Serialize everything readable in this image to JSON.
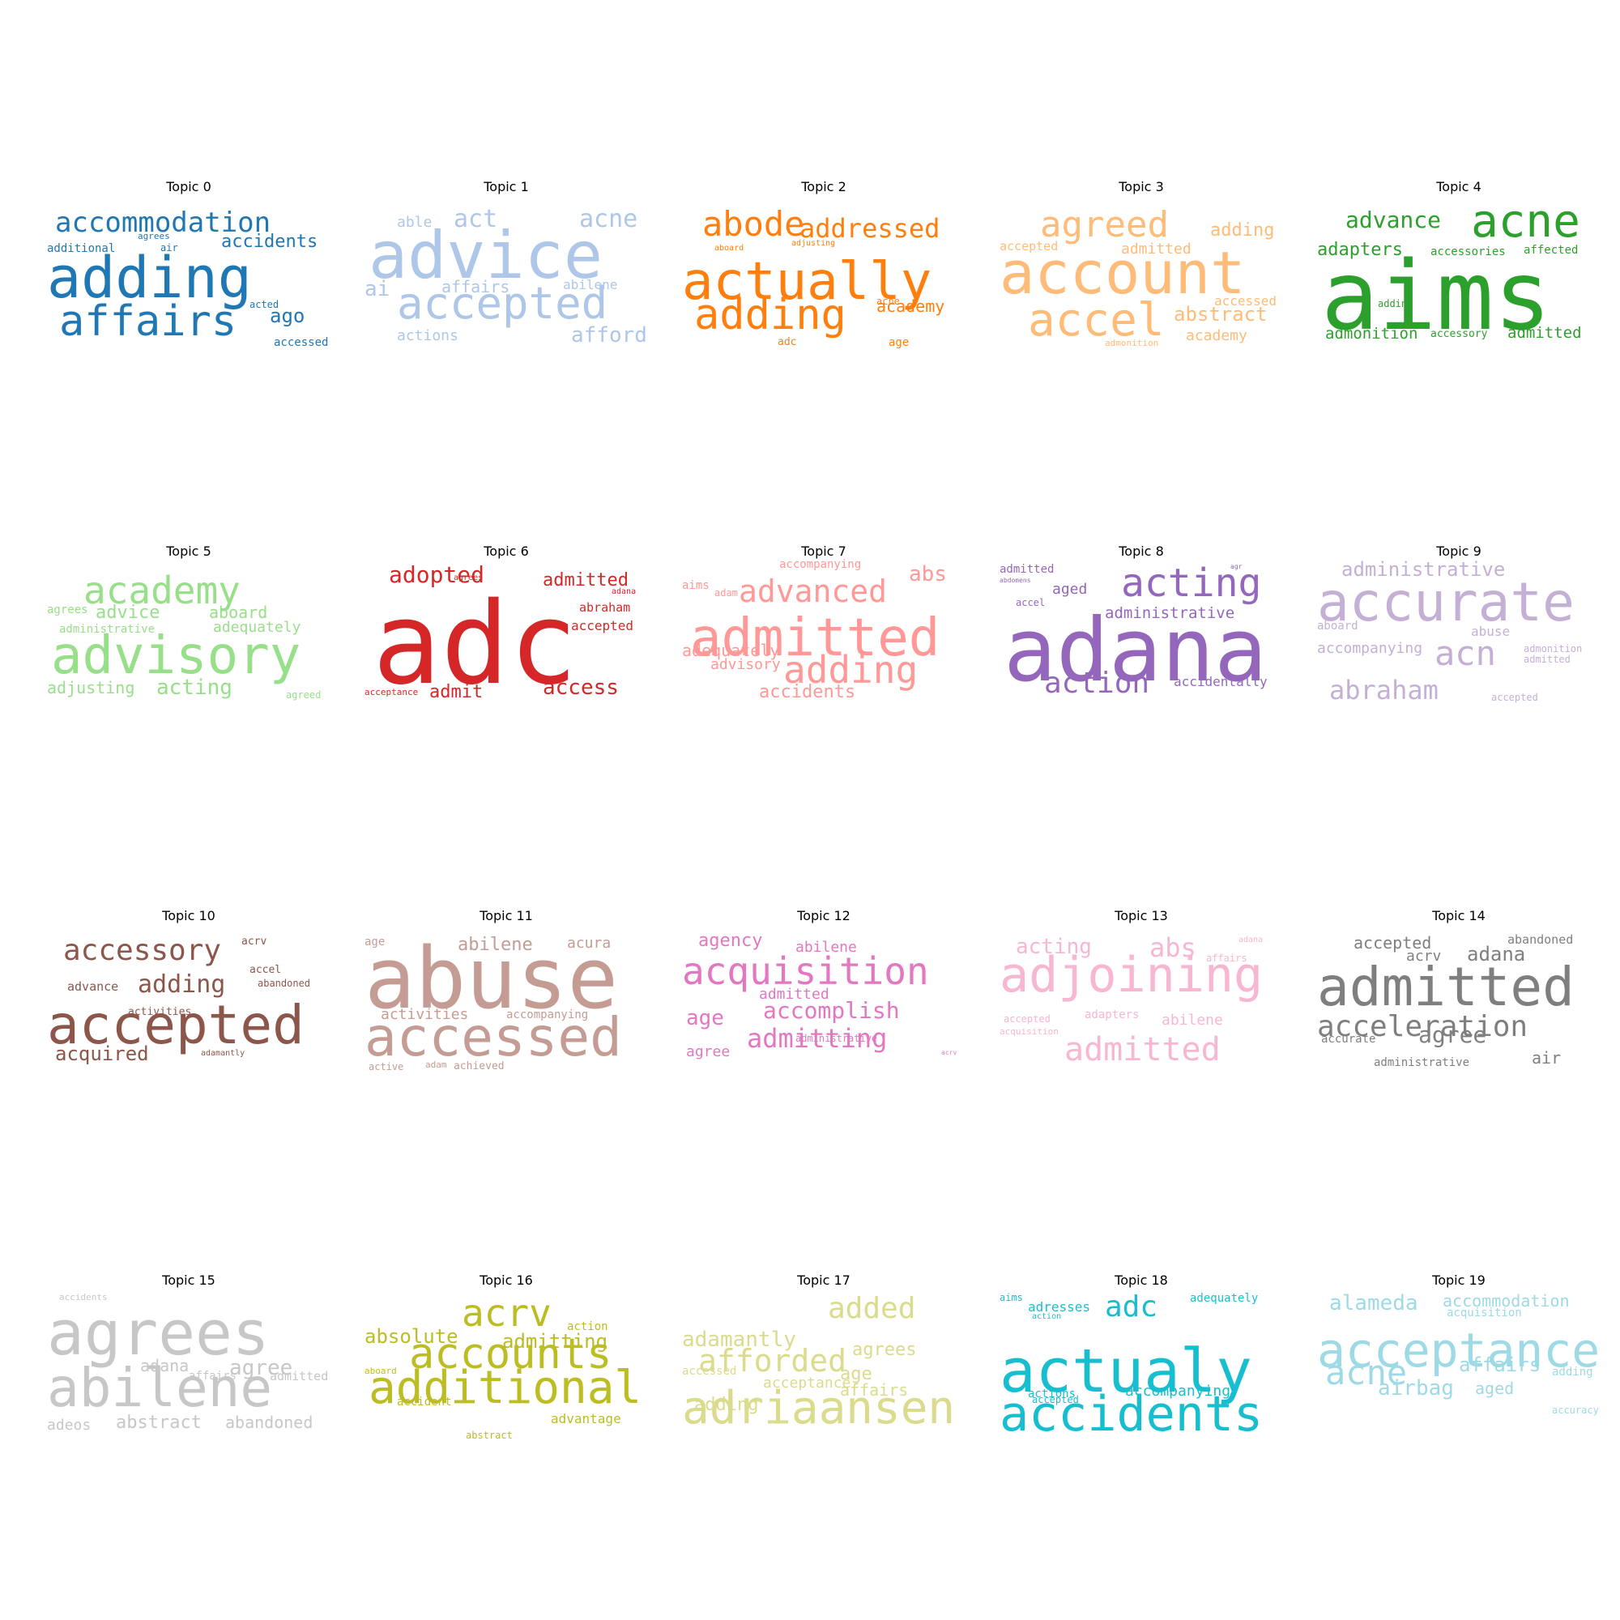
{
  "chart_data": {
    "type": "wordcloud-grid",
    "panels": [
      {
        "title": "Topic 0",
        "color": "#1f77b4",
        "words": [
          "adding",
          "affairs",
          "accommodation",
          "accidents",
          "additional",
          "agrees",
          "air",
          "acted",
          "ago",
          "accessed"
        ]
      },
      {
        "title": "Topic 1",
        "color": "#aec7e8",
        "words": [
          "advice",
          "accepted",
          "able",
          "act",
          "acne",
          "ai",
          "affairs",
          "abilene",
          "actions",
          "afford"
        ]
      },
      {
        "title": "Topic 2",
        "color": "#ff7f0e",
        "words": [
          "actually",
          "adding",
          "abode",
          "addressed",
          "aboard",
          "adjusting",
          "acne",
          "academy",
          "adc",
          "age"
        ]
      },
      {
        "title": "Topic 3",
        "color": "#ffbb78",
        "words": [
          "account",
          "accel",
          "agreed",
          "adding",
          "accepted",
          "admitted",
          "accessed",
          "abstract",
          "admonition",
          "academy"
        ]
      },
      {
        "title": "Topic 4",
        "color": "#2ca02c",
        "words": [
          "aims",
          "acne",
          "advance",
          "adapters",
          "accessories",
          "affected",
          "adding",
          "admonition",
          "accessory",
          "admitted"
        ]
      },
      {
        "title": "Topic 5",
        "color": "#98df8a",
        "words": [
          "academy",
          "advisory",
          "advice",
          "agrees",
          "aboard",
          "administrative",
          "adequately",
          "adjusting",
          "acting",
          "agreed"
        ]
      },
      {
        "title": "Topic 6",
        "color": "#d62728",
        "words": [
          "adc",
          "adopted",
          "admitted",
          "agrees",
          "adana",
          "abraham",
          "accepted",
          "acceptance",
          "admit",
          "access"
        ]
      },
      {
        "title": "Topic 7",
        "color": "#ff9896",
        "words": [
          "admitted",
          "adding",
          "accompanying",
          "abs",
          "aims",
          "adam",
          "advanced",
          "adequately",
          "advisory",
          "accidents"
        ]
      },
      {
        "title": "Topic 8",
        "color": "#9467bd",
        "words": [
          "adana",
          "acting",
          "admitted",
          "abdomens",
          "aged",
          "administrative",
          "accel",
          "action",
          "accidentally",
          "agr"
        ]
      },
      {
        "title": "Topic 9",
        "color": "#c5b0d5",
        "words": [
          "accurate",
          "administrative",
          "aboard",
          "abuse",
          "accompanying",
          "acn",
          "admonition",
          "admitted",
          "abraham",
          "accepted"
        ]
      },
      {
        "title": "Topic 10",
        "color": "#8c564b",
        "words": [
          "accepted",
          "accessory",
          "acrv",
          "accel",
          "advance",
          "adding",
          "abandoned",
          "activities",
          "acquired",
          "adamantly"
        ]
      },
      {
        "title": "Topic 11",
        "color": "#c49c94",
        "words": [
          "abuse",
          "accessed",
          "age",
          "abilene",
          "acura",
          "activities",
          "accompanying",
          "active",
          "adam",
          "achieved"
        ]
      },
      {
        "title": "Topic 12",
        "color": "#e377c2",
        "words": [
          "acquisition",
          "agency",
          "abilene",
          "admitted",
          "accomplish",
          "age",
          "administrative",
          "admitting",
          "agree",
          "acrv"
        ]
      },
      {
        "title": "Topic 13",
        "color": "#f7b6d2",
        "words": [
          "adjoining",
          "admitted",
          "acting",
          "abs",
          "adana",
          "affairs",
          "accepted",
          "adapters",
          "abilene",
          "acquisition"
        ]
      },
      {
        "title": "Topic 14",
        "color": "#7f7f7f",
        "words": [
          "admitted",
          "acceleration",
          "accepted",
          "abandoned",
          "acrv",
          "adana",
          "accurate",
          "agree",
          "air",
          "administrative"
        ]
      },
      {
        "title": "Topic 15",
        "color": "#c7c7c7",
        "words": [
          "agrees",
          "abilene",
          "accidents",
          "adana",
          "agree",
          "affairs",
          "admitted",
          "adeos",
          "abstract",
          "abandoned"
        ]
      },
      {
        "title": "Topic 16",
        "color": "#bcbd22",
        "words": [
          "additional",
          "accounts",
          "acrv",
          "absolute",
          "action",
          "admitting",
          "aboard",
          "accident",
          "abstract",
          "advantage"
        ]
      },
      {
        "title": "Topic 17",
        "color": "#dbdb8d",
        "words": [
          "adriaansen",
          "afforded",
          "added",
          "adamantly",
          "agrees",
          "age",
          "accessed",
          "acceptance",
          "adding",
          "affairs"
        ]
      },
      {
        "title": "Topic 18",
        "color": "#17becf",
        "words": [
          "actualy",
          "accidents",
          "adc",
          "aims",
          "adresses",
          "adequately",
          "action",
          "actions",
          "accepted",
          "accompanying"
        ]
      },
      {
        "title": "Topic 19",
        "color": "#9edae5",
        "words": [
          "acceptance",
          "acne",
          "alameda",
          "accommodation",
          "acquisition",
          "affairs",
          "adding",
          "airbag",
          "aged",
          "accuracy"
        ]
      }
    ]
  }
}
